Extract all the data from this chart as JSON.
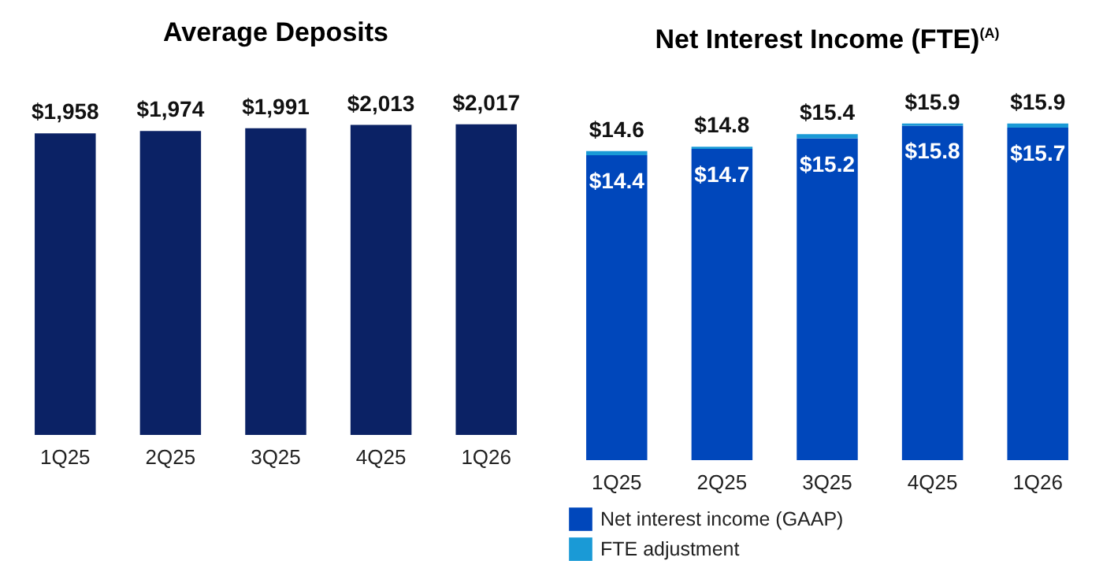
{
  "chart_data": [
    {
      "type": "bar",
      "title": "Average Deposits",
      "categories": [
        "1Q25",
        "2Q25",
        "3Q25",
        "4Q25",
        "1Q26"
      ],
      "values": [
        1958,
        1974,
        1991,
        2013,
        2017
      ],
      "color": "#0b2265",
      "value_labels": [
        "$1,958",
        "$1,974",
        "$1,991",
        "$2,013",
        "$2,017"
      ]
    },
    {
      "type": "bar",
      "title": "Net Interest Income (FTE)$^{(A)}$",
      "categories": [
        "1Q25",
        "2Q25",
        "3Q25",
        "4Q25",
        "1Q26"
      ],
      "stacked": true,
      "legend": "bottom",
      "series": [
        {
          "name": "Net interest income (GAAP)",
          "color": "#0047bb",
          "values": [
            14.4,
            14.7,
            15.2,
            15.8,
            15.7
          ],
          "value_labels": [
            "$14.4",
            "$14.7",
            "$15.2",
            "$15.8",
            "$15.7"
          ]
        },
        {
          "name": "FTE adjustment",
          "color": "#1a9ad6",
          "values": [
            0.2,
            0.1,
            0.2,
            0.1,
            0.2
          ]
        }
      ],
      "totals": [
        "$14.6",
        "$14.8",
        "$15.4",
        "$15.9",
        "$15.9"
      ]
    }
  ]
}
